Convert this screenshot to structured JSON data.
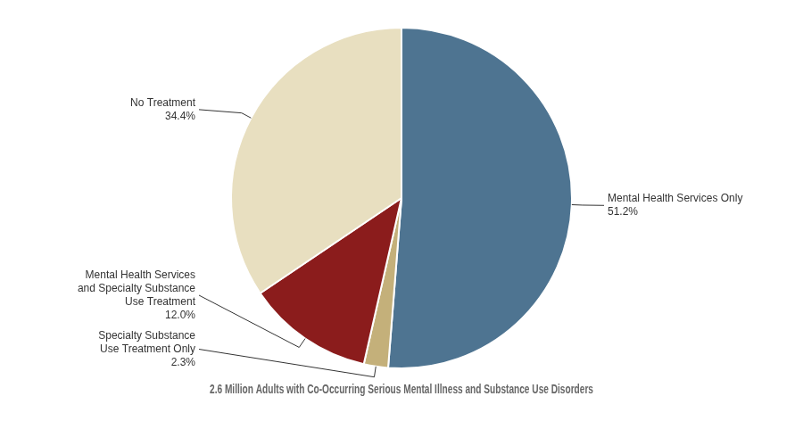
{
  "chart_data": {
    "type": "pie",
    "title": "2.6 Million Adults with Co-Occurring Serious Mental Illness and Substance Use Disorders",
    "categories": [
      "Mental Health Services Only",
      "Specialty Substance\nUse Treatment Only",
      "Mental Health Services\nand Specialty Substance\nUse Treatment",
      "No Treatment"
    ],
    "values": [
      51.2,
      2.3,
      12.0,
      34.4
    ],
    "value_labels": [
      "51.2%",
      "2.3%",
      "12.0%",
      "34.4%"
    ],
    "colors": [
      "#4e7491",
      "#c4b07a",
      "#8b1c1c",
      "#e8dfc0"
    ],
    "data_labels": true,
    "legend": false
  }
}
